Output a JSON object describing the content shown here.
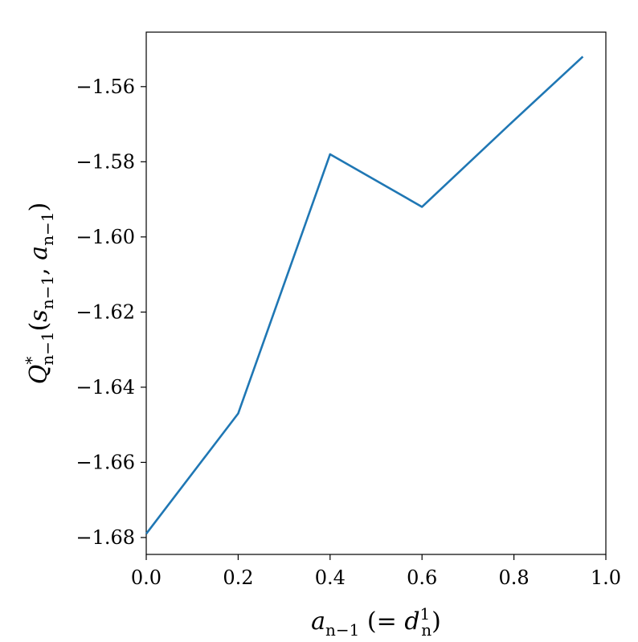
{
  "chart_data": {
    "type": "line",
    "x": [
      0.0,
      0.2,
      0.4,
      0.6,
      0.8,
      0.95
    ],
    "series": [
      {
        "values": [
          -1.679,
          -1.647,
          -1.578,
          -1.592,
          -1.569,
          -1.552
        ],
        "color": "#1f77b4"
      }
    ],
    "xlabel_parts": {
      "main": "a",
      "sub": "n−1",
      "mid": " (= ",
      "main2": "d",
      "sub2": "n",
      "sup2": "1",
      "end": ")"
    },
    "ylabel_parts": {
      "main": "Q",
      "sup": "*",
      "sub": "n−1",
      "open": "(",
      "s": "s",
      "s_sub": "n−1",
      "comma": ", ",
      "a": "a",
      "a_sub": "n−1",
      "close": ")"
    },
    "xlim": [
      0.0,
      1.0
    ],
    "ylim": [
      -1.6845,
      -1.5455
    ],
    "xticks": [
      0.0,
      0.2,
      0.4,
      0.6,
      0.8,
      1.0
    ],
    "xtick_labels": [
      "0.0",
      "0.2",
      "0.4",
      "0.6",
      "0.8",
      "1.0"
    ],
    "yticks": [
      -1.68,
      -1.66,
      -1.64,
      -1.62,
      -1.6,
      -1.58,
      -1.56
    ],
    "ytick_labels": [
      "−1.68",
      "−1.66",
      "−1.64",
      "−1.62",
      "−1.60",
      "−1.58",
      "−1.56"
    ],
    "grid": false
  }
}
